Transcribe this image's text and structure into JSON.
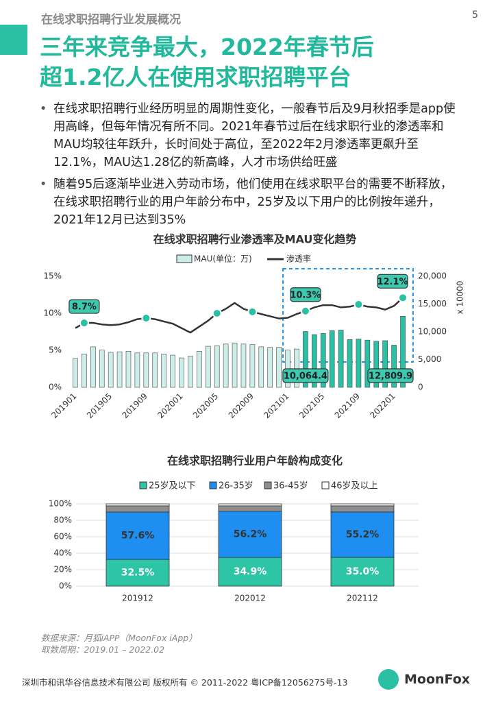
{
  "page_number": "5",
  "header": {
    "section": "在线求职招聘行业发展概况",
    "title_lines": [
      "三年来竞争最大，2022年春节后",
      "超1.2亿人在使用求职招聘平台"
    ]
  },
  "bullets": [
    "在线求职招聘行业经历明显的周期性变化，一般春节后及9月秋招季是app使用高峰，但每年情况有所不同。2021年春节过后在线求职行业的渗透率和MAU均较往年跃升，长时间处于高位，至2022年2月渗透率更飙升至12.1%，MAU达1.28亿的新高峰，人才市场供给旺盛",
    "随着95后逐渐毕业进入劳动市场，他们使用在线求职平台的需要不断释放，在线求职招聘行业的用户年龄分布中，25岁及以下用户的比例按年递升，2021年12月已达到35%"
  ],
  "chart_data": [
    {
      "type": "bar-line",
      "title": "在线求职招聘行业渗透率及MAU变化趋势",
      "categories": [
        "201901",
        null,
        null,
        null,
        "201905",
        null,
        null,
        null,
        "201909",
        null,
        null,
        null,
        "202001",
        null,
        null,
        null,
        "202005",
        null,
        null,
        null,
        "202009",
        null,
        null,
        null,
        "202101",
        null,
        null,
        null,
        "202105",
        null,
        null,
        null,
        "202109",
        null,
        null,
        null,
        "202201",
        null
      ],
      "series": [
        {
          "name": "MAU(单位：万)",
          "type": "bar",
          "axis": "y2",
          "values": [
            5200,
            6000,
            7300,
            6700,
            6300,
            6400,
            6500,
            6200,
            6200,
            6200,
            6000,
            5800,
            5300,
            5600,
            6500,
            7400,
            7500,
            7800,
            8000,
            7800,
            7700,
            7300,
            7200,
            7200,
            6700,
            6900,
            10064.4,
            9500,
            9700,
            10200,
            10300,
            8600,
            8700,
            8500,
            8300,
            8400,
            7600,
            12809.9
          ],
          "value_labels": [
            null,
            null,
            null,
            null,
            null,
            null,
            null,
            null,
            null,
            null,
            null,
            null,
            null,
            null,
            null,
            null,
            null,
            null,
            null,
            null,
            null,
            null,
            null,
            null,
            null,
            null,
            "10,064.4",
            null,
            null,
            null,
            null,
            null,
            null,
            null,
            null,
            null,
            null,
            "12,809.9"
          ],
          "colors": [
            "#cdeee8",
            "#cdeee8",
            "#cdeee8",
            "#cdeee8",
            "#cdeee8",
            "#cdeee8",
            "#cdeee8",
            "#cdeee8",
            "#cdeee8",
            "#cdeee8",
            "#cdeee8",
            "#cdeee8",
            "#cdeee8",
            "#cdeee8",
            "#cdeee8",
            "#cdeee8",
            "#cdeee8",
            "#cdeee8",
            "#cdeee8",
            "#cdeee8",
            "#cdeee8",
            "#cdeee8",
            "#cdeee8",
            "#cdeee8",
            "#cdeee8",
            "#cdeee8",
            "#2bbfa4",
            "#2bbfa4",
            "#2bbfa4",
            "#2bbfa4",
            "#2bbfa4",
            "#2bbfa4",
            "#2bbfa4",
            "#2bbfa4",
            "#2bbfa4",
            "#2bbfa4",
            "#2bbfa4",
            "#2bbfa4"
          ]
        },
        {
          "name": "渗透率",
          "type": "line",
          "color": "#333333",
          "values": [
            8.0,
            8.7,
            8.7,
            8.5,
            8.4,
            8.5,
            8.8,
            9.2,
            9.35,
            9.2,
            8.9,
            8.6,
            8.0,
            7.4,
            8.2,
            9.0,
            10.0,
            10.6,
            11.4,
            10.6,
            10.2,
            9.9,
            9.6,
            9.3,
            9.4,
            9.9,
            10.3,
            10.8,
            11.1,
            11.1,
            10.8,
            10.9,
            11.2,
            10.9,
            10.8,
            10.5,
            11.0,
            12.1
          ],
          "value_labels": [
            null,
            "8.7%",
            null,
            null,
            null,
            null,
            null,
            null,
            null,
            null,
            null,
            null,
            null,
            null,
            null,
            null,
            null,
            null,
            null,
            null,
            null,
            null,
            null,
            null,
            null,
            null,
            "10.3%",
            null,
            null,
            null,
            null,
            null,
            null,
            null,
            null,
            null,
            null,
            "12.1%"
          ],
          "markers": [
            1,
            8,
            16,
            20,
            26,
            32,
            37
          ]
        }
      ],
      "ylim": [
        0,
        15
      ],
      "yticks": [
        {
          "value": 0,
          "label": "0%"
        },
        {
          "value": 5,
          "label": "5%"
        },
        {
          "value": 10,
          "label": "10%"
        },
        {
          "value": 15,
          "label": "15%"
        }
      ],
      "y2lim": [
        0,
        20000
      ],
      "y2ticks": [
        0,
        {
          "value": 5000,
          "label": "5,000"
        },
        {
          "value": 10000,
          "label": "10,000"
        },
        {
          "value": 15000,
          "label": "15,000"
        },
        {
          "value": 20000,
          "label": "20,000"
        }
      ],
      "y2label": "x 10000"
    },
    {
      "type": "stacked-bar",
      "title": "在线求职招聘行业用户年龄构成变化",
      "categories": [
        "201912",
        "202012",
        "202112"
      ],
      "series": [
        {
          "name": "25岁及以下",
          "color": "#2ec4a6",
          "values": [
            32.5,
            34.9,
            35.0
          ],
          "value_labels": [
            "32.5%",
            "34.9%",
            "35.0%"
          ]
        },
        {
          "name": "26-35岁",
          "color": "#1e8ff0",
          "values": [
            57.6,
            56.2,
            55.2
          ],
          "value_labels": [
            "57.6%",
            "56.2%",
            "55.2%"
          ]
        },
        {
          "name": "36-45岁",
          "color": "#8f8f8f",
          "values": [
            7.5,
            6.5,
            7.4
          ]
        },
        {
          "name": "46岁及以上",
          "color": "#ffffff",
          "values": [
            2.4,
            2.4,
            2.4
          ]
        }
      ],
      "ylim": [
        0,
        100
      ],
      "yticks": [
        {
          "value": 0,
          "label": "0%"
        },
        {
          "value": 20,
          "label": "20%"
        },
        {
          "value": 40,
          "label": "40%"
        },
        {
          "value": 60,
          "label": "60%"
        },
        {
          "value": 80,
          "label": "80%"
        },
        {
          "value": 100,
          "label": "100%"
        }
      ],
      "grid": true
    }
  ],
  "source": [
    "数据来源：月狐iAPP（MoonFox iApp）",
    "取数周期：2019.01 – 2022.02"
  ],
  "footer": {
    "copyright": "深圳市和讯华谷信息技术有限公司 版权所有 © 2011-2022 粤ICP备12056275号-13",
    "logo": "MoonFox"
  }
}
